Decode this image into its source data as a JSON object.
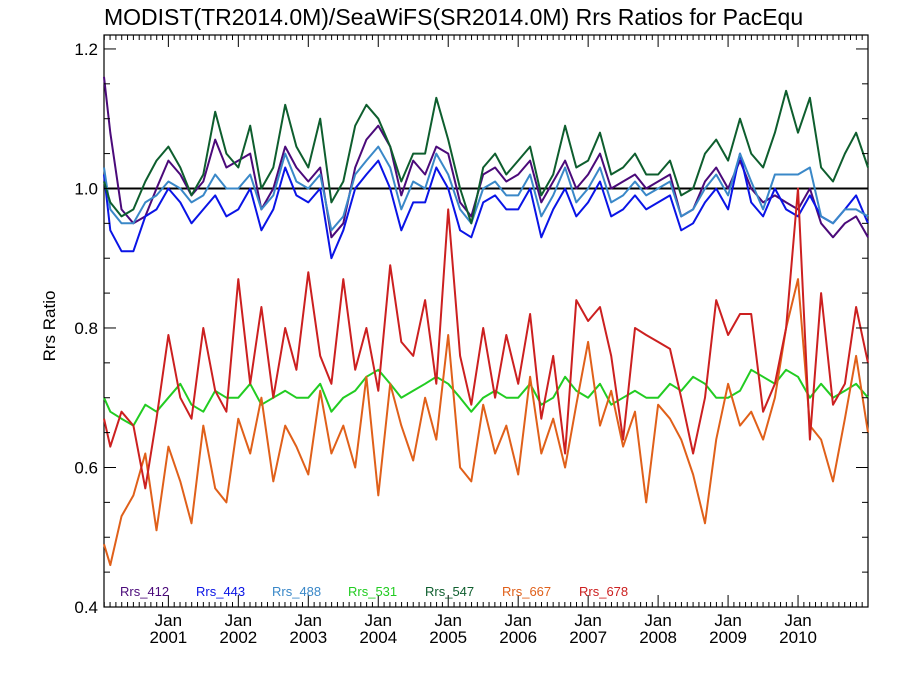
{
  "chart_data": {
    "type": "line",
    "title": "MODIST(TR2014.0M)/SeaWiFS(SR2014.0M)  Rrs Ratios for PacEqu",
    "ylabel": "Rrs Ratio",
    "xlabel": "",
    "ylim": [
      0.4,
      1.22
    ],
    "yticks": [
      0.4,
      0.6,
      0.8,
      1.0,
      1.2
    ],
    "ytick_labels": [
      "0.4",
      "0.6",
      "0.8",
      "1.0",
      "1.2"
    ],
    "xlim": [
      2000.08,
      2011.0
    ],
    "xticks": [
      2001.0,
      2002.0,
      2003.0,
      2004.0,
      2005.0,
      2006.0,
      2007.0,
      2008.0,
      2009.0,
      2010.0
    ],
    "xtick_labels": [
      [
        "Jan",
        "2001"
      ],
      [
        "Jan",
        "2002"
      ],
      [
        "Jan",
        "2003"
      ],
      [
        "Jan",
        "2004"
      ],
      [
        "Jan",
        "2005"
      ],
      [
        "Jan",
        "2006"
      ],
      [
        "Jan",
        "2007"
      ],
      [
        "Jan",
        "2008"
      ],
      [
        "Jan",
        "2009"
      ],
      [
        "Jan",
        "2010"
      ]
    ],
    "reference_line": 1.0,
    "legend_position": "bottom-left",
    "grid": false,
    "series": [
      {
        "name": "Rrs_412",
        "color": "#4b0a7a",
        "x": [
          2000.08,
          2000.17,
          2000.33,
          2000.5,
          2000.67,
          2000.83,
          2001.0,
          2001.17,
          2001.33,
          2001.5,
          2001.67,
          2001.83,
          2002.0,
          2002.17,
          2002.33,
          2002.5,
          2002.67,
          2002.83,
          2003.0,
          2003.17,
          2003.33,
          2003.5,
          2003.67,
          2003.83,
          2004.0,
          2004.17,
          2004.33,
          2004.5,
          2004.67,
          2004.83,
          2005.0,
          2005.17,
          2005.33,
          2005.5,
          2005.67,
          2005.83,
          2006.0,
          2006.17,
          2006.33,
          2006.5,
          2006.67,
          2006.83,
          2007.0,
          2007.17,
          2007.33,
          2007.5,
          2007.67,
          2007.83,
          2008.0,
          2008.17,
          2008.33,
          2008.5,
          2008.67,
          2008.83,
          2009.0,
          2009.17,
          2009.33,
          2009.5,
          2009.67,
          2009.83,
          2010.0,
          2010.17,
          2010.33,
          2010.5,
          2010.67,
          2010.83,
          2011.0
        ],
        "y": [
          1.16,
          1.08,
          0.97,
          0.95,
          0.96,
          1.0,
          1.04,
          1.02,
          0.99,
          1.01,
          1.07,
          1.03,
          1.04,
          1.05,
          0.97,
          1.0,
          1.06,
          1.03,
          1.01,
          1.03,
          0.93,
          0.95,
          1.03,
          1.07,
          1.09,
          1.06,
          0.99,
          1.04,
          1.02,
          1.06,
          1.05,
          0.98,
          0.96,
          1.02,
          1.03,
          1.01,
          1.02,
          1.04,
          0.98,
          1.01,
          1.04,
          1.0,
          1.02,
          1.05,
          1.0,
          1.01,
          1.02,
          1.0,
          1.01,
          1.02,
          0.96,
          0.97,
          1.01,
          1.03,
          1.0,
          1.04,
          1.0,
          0.98,
          0.99,
          0.98,
          0.97,
          1.0,
          0.95,
          0.93,
          0.95,
          0.96,
          0.93
        ]
      },
      {
        "name": "Rrs_443",
        "color": "#0a14e6",
        "x": [
          2000.08,
          2000.17,
          2000.33,
          2000.5,
          2000.67,
          2000.83,
          2001.0,
          2001.17,
          2001.33,
          2001.5,
          2001.67,
          2001.83,
          2002.0,
          2002.17,
          2002.33,
          2002.5,
          2002.67,
          2002.83,
          2003.0,
          2003.17,
          2003.33,
          2003.5,
          2003.67,
          2003.83,
          2004.0,
          2004.17,
          2004.33,
          2004.5,
          2004.67,
          2004.83,
          2005.0,
          2005.17,
          2005.33,
          2005.5,
          2005.67,
          2005.83,
          2006.0,
          2006.17,
          2006.33,
          2006.5,
          2006.67,
          2006.83,
          2007.0,
          2007.17,
          2007.33,
          2007.5,
          2007.67,
          2007.83,
          2008.0,
          2008.17,
          2008.33,
          2008.5,
          2008.67,
          2008.83,
          2009.0,
          2009.17,
          2009.33,
          2009.5,
          2009.67,
          2009.83,
          2010.0,
          2010.17,
          2010.33,
          2010.5,
          2010.67,
          2010.83,
          2011.0
        ],
        "y": [
          1.02,
          0.94,
          0.91,
          0.91,
          0.96,
          0.97,
          1.0,
          0.98,
          0.95,
          0.97,
          0.99,
          0.96,
          0.97,
          1.0,
          0.94,
          0.97,
          1.03,
          0.99,
          0.98,
          1.0,
          0.9,
          0.94,
          1.0,
          1.02,
          1.04,
          1.0,
          0.94,
          0.98,
          0.98,
          1.03,
          1.0,
          0.94,
          0.93,
          0.98,
          0.99,
          0.97,
          0.97,
          1.0,
          0.93,
          0.97,
          1.0,
          0.96,
          0.98,
          1.01,
          0.96,
          0.97,
          0.99,
          0.97,
          0.98,
          0.99,
          0.94,
          0.95,
          0.98,
          1.0,
          0.97,
          1.05,
          0.98,
          0.96,
          1.0,
          0.97,
          0.96,
          0.99,
          0.96,
          0.95,
          0.97,
          0.99,
          0.95
        ]
      },
      {
        "name": "Rrs_488",
        "color": "#3a88c8",
        "x": [
          2000.08,
          2000.17,
          2000.33,
          2000.5,
          2000.67,
          2000.83,
          2001.0,
          2001.17,
          2001.33,
          2001.5,
          2001.67,
          2001.83,
          2002.0,
          2002.17,
          2002.33,
          2002.5,
          2002.67,
          2002.83,
          2003.0,
          2003.17,
          2003.33,
          2003.5,
          2003.67,
          2003.83,
          2004.0,
          2004.17,
          2004.33,
          2004.5,
          2004.67,
          2004.83,
          2005.0,
          2005.17,
          2005.33,
          2005.5,
          2005.67,
          2005.83,
          2006.0,
          2006.17,
          2006.33,
          2006.5,
          2006.67,
          2006.83,
          2007.0,
          2007.17,
          2007.33,
          2007.5,
          2007.67,
          2007.83,
          2008.0,
          2008.17,
          2008.33,
          2008.5,
          2008.67,
          2008.83,
          2009.0,
          2009.17,
          2009.33,
          2009.5,
          2009.67,
          2009.83,
          2010.0,
          2010.17,
          2010.33,
          2010.5,
          2010.67,
          2010.83,
          2011.0
        ],
        "y": [
          1.03,
          0.97,
          0.95,
          0.95,
          0.98,
          0.99,
          1.01,
          1.0,
          0.98,
          0.99,
          1.02,
          1.0,
          1.0,
          1.02,
          0.97,
          0.99,
          1.05,
          1.01,
          1.0,
          1.02,
          0.94,
          0.96,
          1.02,
          1.04,
          1.06,
          1.03,
          0.97,
          1.01,
          1.0,
          1.05,
          1.02,
          0.97,
          0.95,
          1.0,
          1.01,
          0.99,
          0.99,
          1.02,
          0.96,
          0.99,
          1.03,
          0.98,
          1.0,
          1.03,
          0.98,
          0.99,
          1.01,
          0.99,
          1.0,
          1.01,
          0.96,
          0.97,
          1.0,
          1.02,
          0.99,
          1.05,
          1.01,
          0.97,
          1.02,
          1.02,
          1.02,
          1.03,
          0.96,
          0.95,
          0.97,
          0.97,
          0.96
        ]
      },
      {
        "name": "Rrs_531",
        "color": "#22cc22",
        "x": [
          2000.08,
          2000.17,
          2000.33,
          2000.5,
          2000.67,
          2000.83,
          2001.0,
          2001.17,
          2001.33,
          2001.5,
          2001.67,
          2001.83,
          2002.0,
          2002.17,
          2002.33,
          2002.5,
          2002.67,
          2002.83,
          2003.0,
          2003.17,
          2003.33,
          2003.5,
          2003.67,
          2003.83,
          2004.0,
          2004.17,
          2004.33,
          2004.5,
          2004.67,
          2004.83,
          2005.0,
          2005.17,
          2005.33,
          2005.5,
          2005.67,
          2005.83,
          2006.0,
          2006.17,
          2006.33,
          2006.5,
          2006.67,
          2006.83,
          2007.0,
          2007.17,
          2007.33,
          2007.5,
          2007.67,
          2007.83,
          2008.0,
          2008.17,
          2008.33,
          2008.5,
          2008.67,
          2008.83,
          2009.0,
          2009.17,
          2009.33,
          2009.5,
          2009.67,
          2009.83,
          2010.0,
          2010.17,
          2010.33,
          2010.5,
          2010.67,
          2010.83,
          2011.0
        ],
        "y": [
          0.7,
          0.68,
          0.67,
          0.66,
          0.69,
          0.68,
          0.7,
          0.72,
          0.69,
          0.68,
          0.71,
          0.7,
          0.7,
          0.72,
          0.69,
          0.7,
          0.71,
          0.7,
          0.7,
          0.72,
          0.68,
          0.7,
          0.71,
          0.73,
          0.74,
          0.72,
          0.7,
          0.71,
          0.72,
          0.73,
          0.72,
          0.7,
          0.68,
          0.7,
          0.71,
          0.7,
          0.7,
          0.72,
          0.69,
          0.7,
          0.73,
          0.71,
          0.7,
          0.72,
          0.69,
          0.7,
          0.71,
          0.7,
          0.7,
          0.72,
          0.71,
          0.73,
          0.72,
          0.7,
          0.7,
          0.71,
          0.74,
          0.73,
          0.72,
          0.74,
          0.73,
          0.7,
          0.72,
          0.7,
          0.71,
          0.72,
          0.7
        ]
      },
      {
        "name": "Rrs_547",
        "color": "#0e5e2e",
        "x": [
          2000.08,
          2000.17,
          2000.33,
          2000.5,
          2000.67,
          2000.83,
          2001.0,
          2001.17,
          2001.33,
          2001.5,
          2001.67,
          2001.83,
          2002.0,
          2002.17,
          2002.33,
          2002.5,
          2002.67,
          2002.83,
          2003.0,
          2003.17,
          2003.33,
          2003.5,
          2003.67,
          2003.83,
          2004.0,
          2004.17,
          2004.33,
          2004.5,
          2004.67,
          2004.83,
          2005.0,
          2005.17,
          2005.33,
          2005.5,
          2005.67,
          2005.83,
          2006.0,
          2006.17,
          2006.33,
          2006.5,
          2006.67,
          2006.83,
          2007.0,
          2007.17,
          2007.33,
          2007.5,
          2007.67,
          2007.83,
          2008.0,
          2008.17,
          2008.33,
          2008.5,
          2008.67,
          2008.83,
          2009.0,
          2009.17,
          2009.33,
          2009.5,
          2009.67,
          2009.83,
          2010.0,
          2010.17,
          2010.33,
          2010.5,
          2010.67,
          2010.83,
          2011.0
        ],
        "y": [
          1.01,
          0.98,
          0.96,
          0.97,
          1.01,
          1.04,
          1.06,
          1.03,
          0.99,
          1.02,
          1.11,
          1.05,
          1.03,
          1.09,
          1.0,
          1.03,
          1.12,
          1.06,
          1.03,
          1.1,
          0.98,
          1.01,
          1.09,
          1.12,
          1.1,
          1.06,
          1.01,
          1.05,
          1.05,
          1.13,
          1.07,
          1.0,
          0.95,
          1.03,
          1.05,
          1.02,
          1.04,
          1.06,
          0.99,
          1.02,
          1.09,
          1.03,
          1.04,
          1.08,
          1.02,
          1.03,
          1.05,
          1.02,
          1.02,
          1.04,
          0.99,
          1.0,
          1.05,
          1.07,
          1.04,
          1.1,
          1.05,
          1.03,
          1.08,
          1.14,
          1.08,
          1.13,
          1.03,
          1.01,
          1.05,
          1.08,
          1.03
        ]
      },
      {
        "name": "Rrs_667",
        "color": "#e0601a",
        "x": [
          2000.08,
          2000.17,
          2000.33,
          2000.5,
          2000.67,
          2000.83,
          2001.0,
          2001.17,
          2001.33,
          2001.5,
          2001.67,
          2001.83,
          2002.0,
          2002.17,
          2002.33,
          2002.5,
          2002.67,
          2002.83,
          2003.0,
          2003.17,
          2003.33,
          2003.5,
          2003.67,
          2003.83,
          2004.0,
          2004.17,
          2004.33,
          2004.5,
          2004.67,
          2004.83,
          2005.0,
          2005.17,
          2005.33,
          2005.5,
          2005.67,
          2005.83,
          2006.0,
          2006.17,
          2006.33,
          2006.5,
          2006.67,
          2006.83,
          2007.0,
          2007.17,
          2007.33,
          2007.5,
          2007.67,
          2007.83,
          2008.0,
          2008.17,
          2008.33,
          2008.5,
          2008.67,
          2008.83,
          2009.0,
          2009.17,
          2009.33,
          2009.5,
          2009.67,
          2009.83,
          2010.0,
          2010.17,
          2010.33,
          2010.5,
          2010.67,
          2010.83,
          2011.0
        ],
        "y": [
          0.49,
          0.46,
          0.53,
          0.56,
          0.62,
          0.51,
          0.63,
          0.58,
          0.52,
          0.66,
          0.57,
          0.55,
          0.67,
          0.62,
          0.7,
          0.58,
          0.66,
          0.63,
          0.59,
          0.71,
          0.62,
          0.66,
          0.6,
          0.73,
          0.56,
          0.72,
          0.66,
          0.61,
          0.7,
          0.64,
          0.79,
          0.6,
          0.58,
          0.69,
          0.62,
          0.66,
          0.59,
          0.73,
          0.62,
          0.67,
          0.6,
          0.69,
          0.78,
          0.66,
          0.71,
          0.63,
          0.68,
          0.55,
          0.69,
          0.67,
          0.64,
          0.59,
          0.52,
          0.64,
          0.72,
          0.66,
          0.68,
          0.64,
          0.7,
          0.8,
          0.87,
          0.66,
          0.64,
          0.58,
          0.67,
          0.76,
          0.65
        ]
      },
      {
        "name": "Rrs_678",
        "color": "#cc2020",
        "x": [
          2000.08,
          2000.17,
          2000.33,
          2000.5,
          2000.67,
          2000.83,
          2001.0,
          2001.17,
          2001.33,
          2001.5,
          2001.67,
          2001.83,
          2002.0,
          2002.17,
          2002.33,
          2002.5,
          2002.67,
          2002.83,
          2003.0,
          2003.17,
          2003.33,
          2003.5,
          2003.67,
          2003.83,
          2004.0,
          2004.17,
          2004.33,
          2004.5,
          2004.67,
          2004.83,
          2005.0,
          2005.17,
          2005.33,
          2005.5,
          2005.67,
          2005.83,
          2006.0,
          2006.17,
          2006.33,
          2006.5,
          2006.67,
          2006.83,
          2007.0,
          2007.17,
          2007.33,
          2007.5,
          2007.67,
          2007.83,
          2008.0,
          2008.17,
          2008.33,
          2008.5,
          2008.67,
          2008.83,
          2009.0,
          2009.17,
          2009.33,
          2009.5,
          2009.67,
          2009.83,
          2010.0,
          2010.17,
          2010.33,
          2010.5,
          2010.67,
          2010.83,
          2011.0
        ],
        "y": [
          0.67,
          0.63,
          0.68,
          0.66,
          0.57,
          0.67,
          0.79,
          0.7,
          0.67,
          0.8,
          0.71,
          0.68,
          0.87,
          0.72,
          0.83,
          0.7,
          0.8,
          0.74,
          0.88,
          0.76,
          0.72,
          0.87,
          0.74,
          0.8,
          0.71,
          0.89,
          0.78,
          0.76,
          0.84,
          0.72,
          0.97,
          0.76,
          0.69,
          0.8,
          0.7,
          0.79,
          0.72,
          0.82,
          0.67,
          0.76,
          0.62,
          0.84,
          0.81,
          0.83,
          0.76,
          0.64,
          0.8,
          0.79,
          0.78,
          0.77,
          0.7,
          0.62,
          0.7,
          0.84,
          0.79,
          0.82,
          0.82,
          0.68,
          0.72,
          0.8,
          1.0,
          0.64,
          0.85,
          0.69,
          0.72,
          0.83,
          0.75
        ]
      }
    ]
  }
}
